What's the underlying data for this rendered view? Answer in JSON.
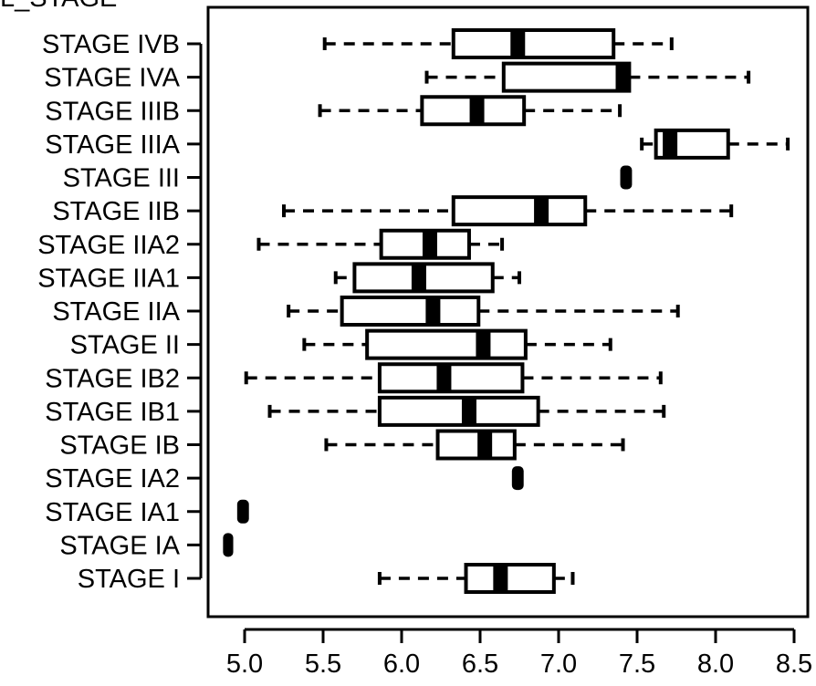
{
  "chart_data": {
    "type": "boxplot",
    "orientation": "horizontal",
    "title": "L_STAGE",
    "xlabel": "",
    "ylabel": "",
    "xlim": [
      4.8,
      8.55
    ],
    "xticks": [
      "5.0",
      "5.5",
      "6.0",
      "6.5",
      "7.0",
      "7.5",
      "8.0",
      "8.5"
    ],
    "grid": false,
    "categories": [
      "STAGE I",
      "STAGE IA",
      "STAGE IA1",
      "STAGE IA2",
      "STAGE IB",
      "STAGE IB1",
      "STAGE IB2",
      "STAGE II",
      "STAGE IIA",
      "STAGE IIA1",
      "STAGE IIA2",
      "STAGE IIB",
      "STAGE III",
      "STAGE IIIA",
      "STAGE IIIB",
      "STAGE IVA",
      "STAGE IVB"
    ],
    "boxes": [
      {
        "label": "STAGE I",
        "min": 5.86,
        "q1": 6.41,
        "median": 6.63,
        "q3": 6.97,
        "max": 7.09
      },
      {
        "label": "STAGE IA",
        "min": 4.88,
        "q1": 4.88,
        "median": 4.89,
        "q3": 4.91,
        "max": 4.91
      },
      {
        "label": "STAGE IA1",
        "min": 4.97,
        "q1": 4.97,
        "median": 4.99,
        "q3": 5.01,
        "max": 5.01
      },
      {
        "label": "STAGE IA2",
        "min": 6.72,
        "q1": 6.72,
        "median": 6.74,
        "q3": 6.76,
        "max": 6.76
      },
      {
        "label": "STAGE IB",
        "min": 5.52,
        "q1": 6.23,
        "median": 6.53,
        "q3": 6.72,
        "max": 7.41
      },
      {
        "label": "STAGE IB1",
        "min": 5.16,
        "q1": 5.86,
        "median": 6.43,
        "q3": 6.87,
        "max": 7.67
      },
      {
        "label": "STAGE IB2",
        "min": 5.01,
        "q1": 5.86,
        "median": 6.27,
        "q3": 6.77,
        "max": 7.65
      },
      {
        "label": "STAGE II",
        "min": 5.38,
        "q1": 5.78,
        "median": 6.52,
        "q3": 6.79,
        "max": 7.33
      },
      {
        "label": "STAGE IIA",
        "min": 5.28,
        "q1": 5.62,
        "median": 6.2,
        "q3": 6.49,
        "max": 7.76
      },
      {
        "label": "STAGE IIA1",
        "min": 5.58,
        "q1": 5.7,
        "median": 6.11,
        "q3": 6.58,
        "max": 6.75
      },
      {
        "label": "STAGE IIA2",
        "min": 5.09,
        "q1": 5.87,
        "median": 6.18,
        "q3": 6.43,
        "max": 6.64
      },
      {
        "label": "STAGE IIB",
        "min": 5.25,
        "q1": 6.33,
        "median": 6.89,
        "q3": 7.17,
        "max": 8.1
      },
      {
        "label": "STAGE III",
        "min": 7.41,
        "q1": 7.41,
        "median": 7.43,
        "q3": 7.45,
        "max": 7.45
      },
      {
        "label": "STAGE IIIA",
        "min": 7.53,
        "q1": 7.62,
        "median": 7.71,
        "q3": 8.08,
        "max": 8.46
      },
      {
        "label": "STAGE IIIB",
        "min": 5.48,
        "q1": 6.13,
        "median": 6.48,
        "q3": 6.78,
        "max": 7.39
      },
      {
        "label": "STAGE IVA",
        "min": 6.16,
        "q1": 6.65,
        "median": 7.41,
        "q3": 7.45,
        "max": 8.21
      },
      {
        "label": "STAGE IVB",
        "min": 5.51,
        "q1": 6.33,
        "median": 6.74,
        "q3": 7.35,
        "max": 7.72
      }
    ],
    "colors": {
      "stroke": "#000000",
      "fill": "#ffffff"
    }
  }
}
